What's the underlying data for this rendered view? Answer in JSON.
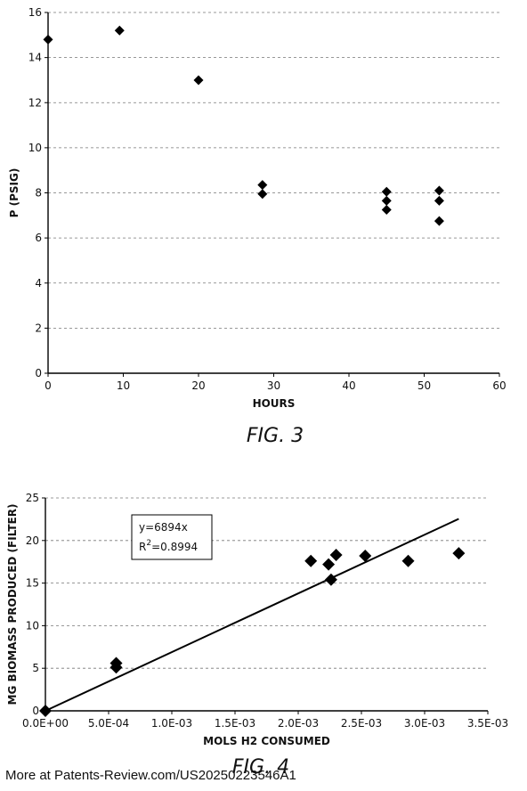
{
  "chart_data": [
    {
      "type": "scatter",
      "title": "",
      "xlabel": "HOURS",
      "ylabel": "P (PSIG)",
      "xlim": [
        0,
        60
      ],
      "ylim": [
        0,
        16
      ],
      "xticks": [
        "0",
        "10",
        "20",
        "30",
        "40",
        "50",
        "60"
      ],
      "yticks": [
        "0",
        "2",
        "4",
        "6",
        "8",
        "10",
        "12",
        "14",
        "16"
      ],
      "grid": "horizontal dashed",
      "points": [
        {
          "x": 0,
          "y": 14.8
        },
        {
          "x": 9.5,
          "y": 15.2
        },
        {
          "x": 20,
          "y": 13.0
        },
        {
          "x": 28.5,
          "y": 8.35
        },
        {
          "x": 28.5,
          "y": 7.95
        },
        {
          "x": 45,
          "y": 8.05
        },
        {
          "x": 45,
          "y": 7.65
        },
        {
          "x": 45,
          "y": 7.25
        },
        {
          "x": 52,
          "y": 8.1
        },
        {
          "x": 52,
          "y": 7.65
        },
        {
          "x": 52,
          "y": 6.75
        }
      ],
      "caption": "FIG. 3"
    },
    {
      "type": "scatter",
      "title": "",
      "xlabel": "MOLS H2 CONSUMED",
      "ylabel": "MG BIOMASS PRODUCED (FILTER)",
      "xlim": [
        0,
        0.0035
      ],
      "ylim": [
        0,
        25
      ],
      "xticks": [
        "0.0E+00",
        "5.0E-04",
        "1.0E-03",
        "1.5E-03",
        "2.0E-03",
        "2.5E-03",
        "3.0E-03",
        "3.5E-03"
      ],
      "yticks": [
        "0",
        "5",
        "10",
        "15",
        "20",
        "25"
      ],
      "grid": "horizontal dashed",
      "points": [
        {
          "x": 0.0,
          "y": 0.0
        },
        {
          "x": 0.00056,
          "y": 5.1
        },
        {
          "x": 0.00056,
          "y": 5.6
        },
        {
          "x": 0.0021,
          "y": 17.6
        },
        {
          "x": 0.00224,
          "y": 17.2
        },
        {
          "x": 0.00226,
          "y": 15.4
        },
        {
          "x": 0.0023,
          "y": 18.3
        },
        {
          "x": 0.00253,
          "y": 18.2
        },
        {
          "x": 0.00287,
          "y": 17.6
        },
        {
          "x": 0.00327,
          "y": 18.5
        }
      ],
      "trendline": {
        "slope": 6894,
        "x_range": [
          0,
          0.00327
        ]
      },
      "equation": "y=6894x",
      "r2_prefix": "R",
      "r2_sup": "2",
      "r2_value": "=0.8994",
      "caption": "FIG. 4"
    }
  ],
  "footer": "More at Patents-Review.com/US20250223546A1"
}
